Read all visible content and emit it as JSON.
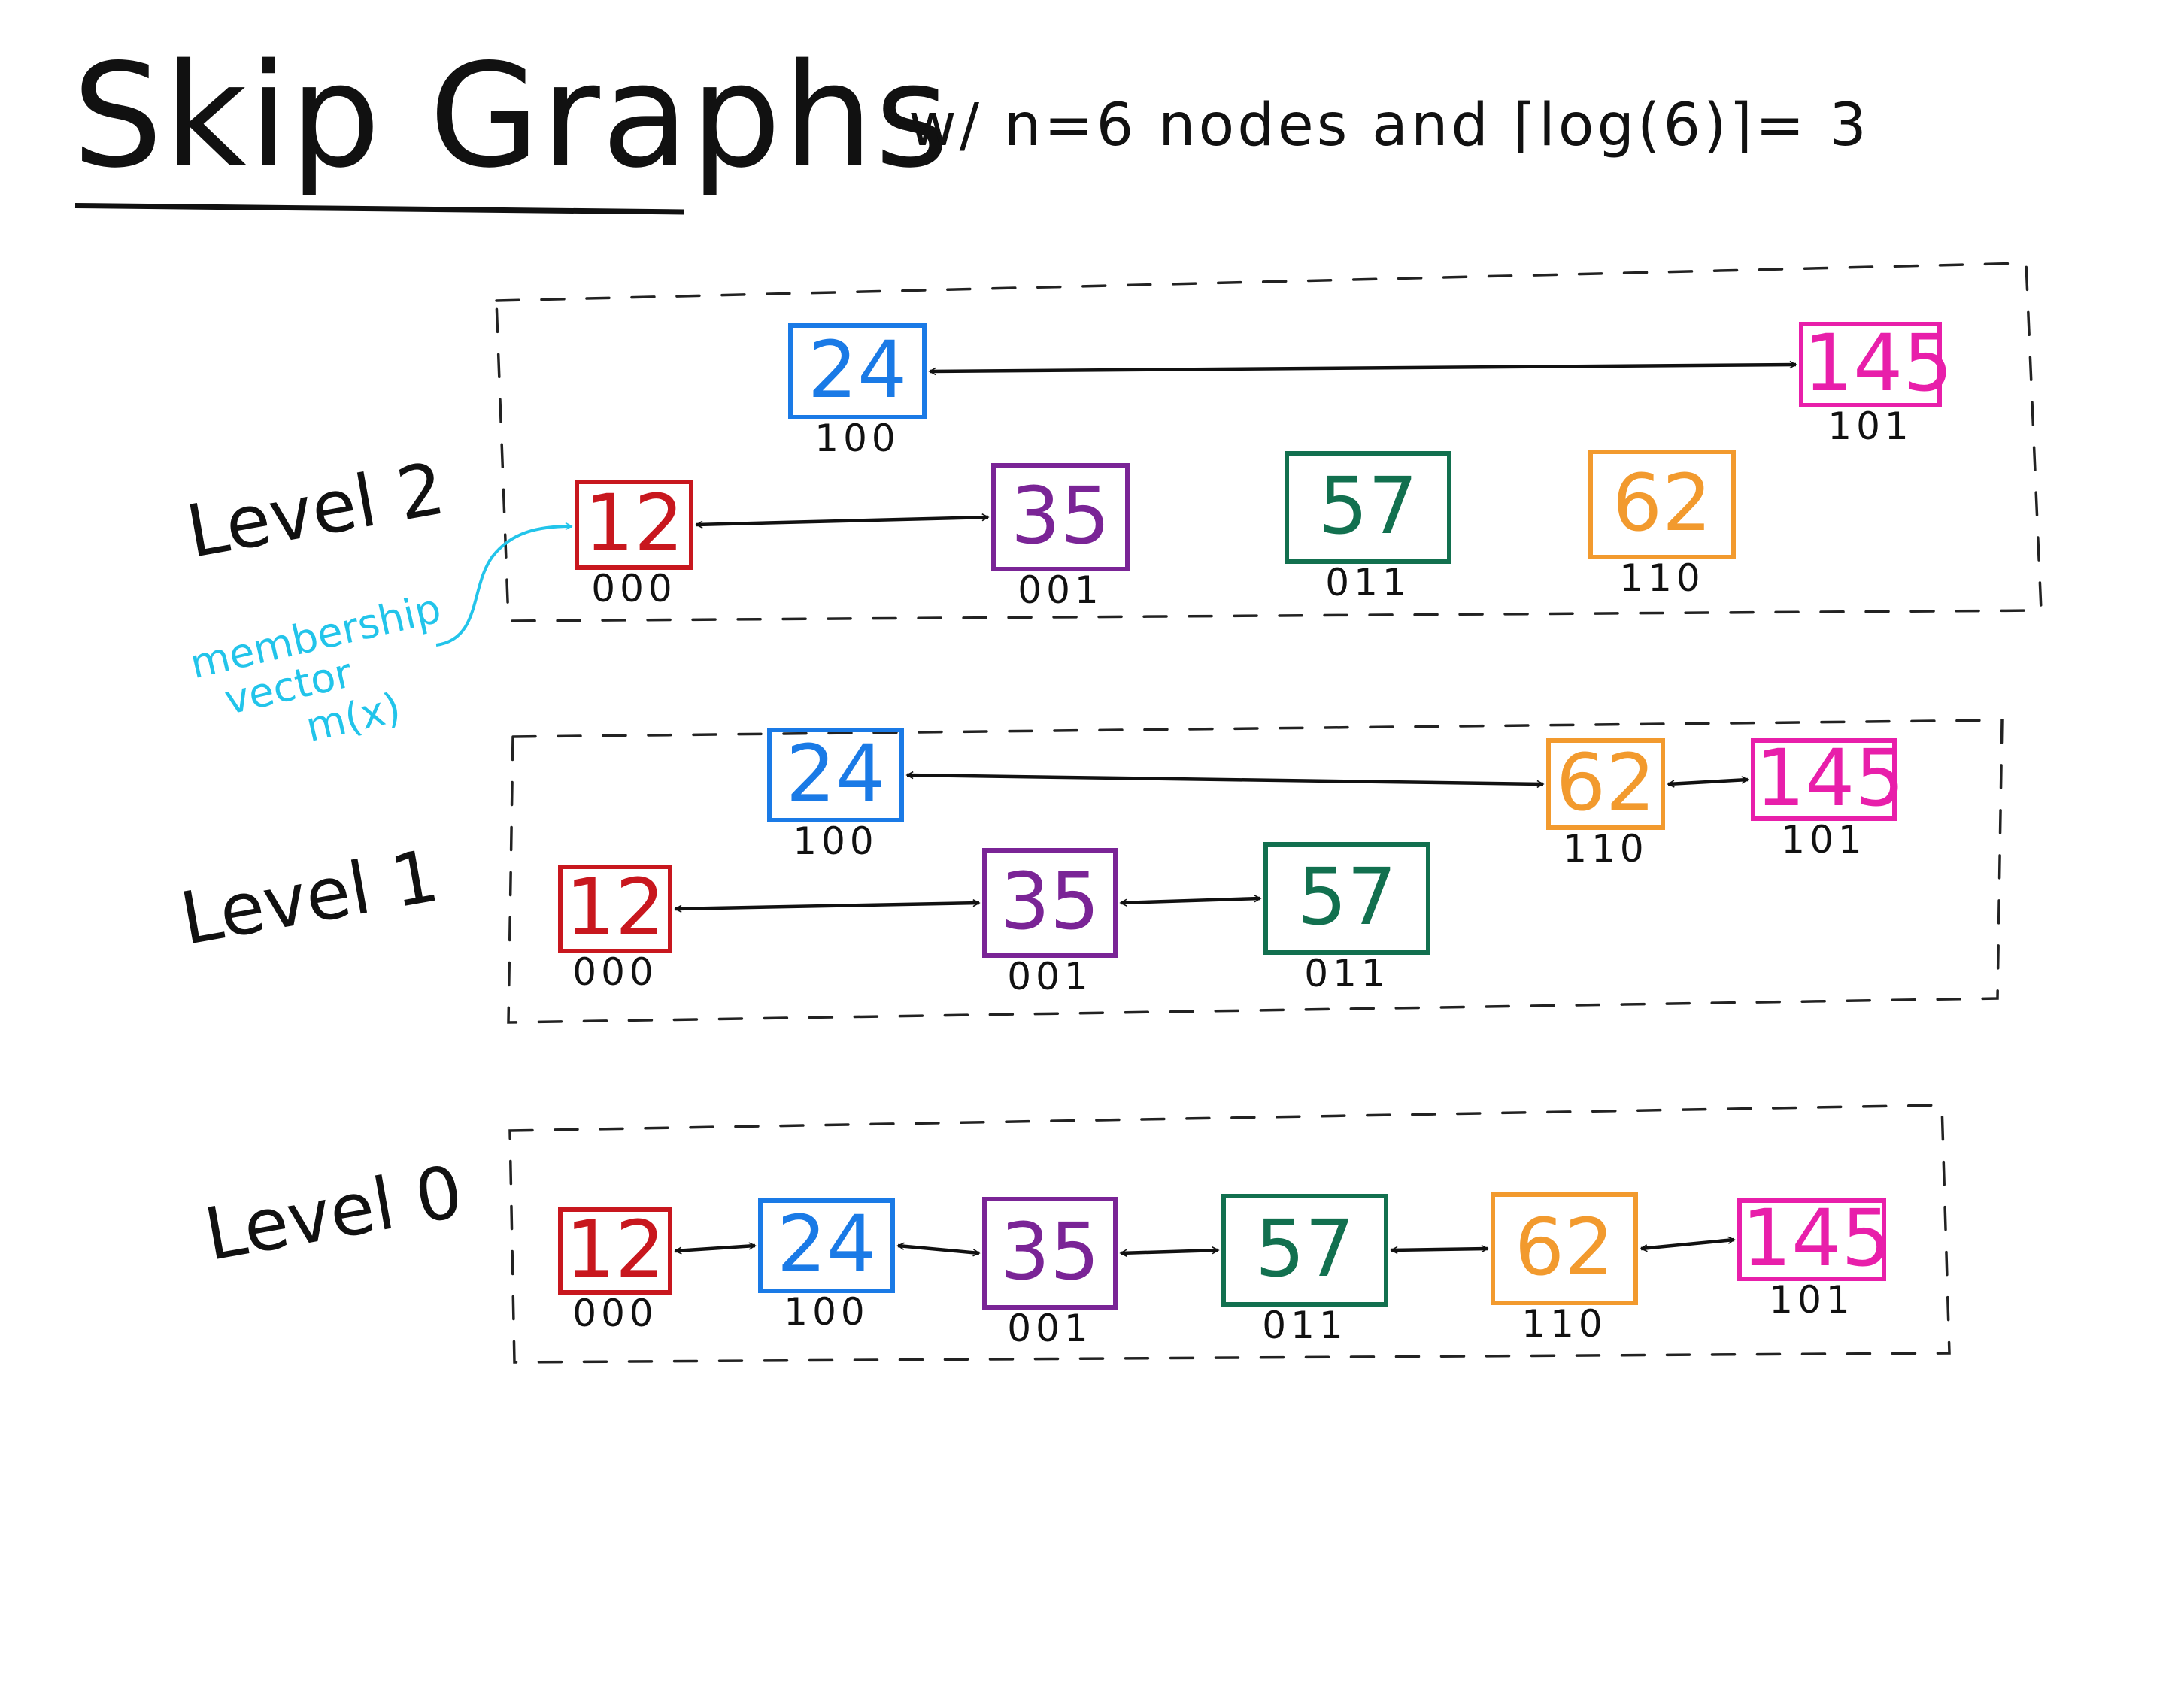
{
  "header": {
    "title": "Skip Graphs",
    "subtitle": "w/ n=6 nodes and ⌈log(6)⌉= 3"
  },
  "annotation": {
    "line1": "membership",
    "line2": "vector",
    "line3": "m(x)",
    "color": "#22c4ea"
  },
  "colors": {
    "red": "#c8171e",
    "blue": "#1a7ae6",
    "purple": "#7a2496",
    "green": "#12704f",
    "orange": "#f29a2e",
    "pink": "#e81faa"
  },
  "levels": [
    {
      "label": "Level 2",
      "nodes": [
        {
          "key": "24",
          "vector": "100",
          "color": "blue"
        },
        {
          "key": "145",
          "vector": "101",
          "color": "pink"
        },
        {
          "key": "12",
          "vector": "000",
          "color": "red"
        },
        {
          "key": "35",
          "vector": "001",
          "color": "purple"
        },
        {
          "key": "57",
          "vector": "011",
          "color": "green"
        },
        {
          "key": "62",
          "vector": "110",
          "color": "orange"
        }
      ],
      "links": [
        [
          "24",
          "145"
        ],
        [
          "12",
          "35"
        ]
      ]
    },
    {
      "label": "Level 1",
      "nodes": [
        {
          "key": "24",
          "vector": "100",
          "color": "blue"
        },
        {
          "key": "62",
          "vector": "110",
          "color": "orange"
        },
        {
          "key": "145",
          "vector": "101",
          "color": "pink"
        },
        {
          "key": "12",
          "vector": "000",
          "color": "red"
        },
        {
          "key": "35",
          "vector": "001",
          "color": "purple"
        },
        {
          "key": "57",
          "vector": "011",
          "color": "green"
        }
      ],
      "links": [
        [
          "24",
          "62"
        ],
        [
          "62",
          "145"
        ],
        [
          "12",
          "35"
        ],
        [
          "35",
          "57"
        ]
      ]
    },
    {
      "label": "Level 0",
      "nodes": [
        {
          "key": "12",
          "vector": "000",
          "color": "red"
        },
        {
          "key": "24",
          "vector": "100",
          "color": "blue"
        },
        {
          "key": "35",
          "vector": "001",
          "color": "purple"
        },
        {
          "key": "57",
          "vector": "011",
          "color": "green"
        },
        {
          "key": "62",
          "vector": "110",
          "color": "orange"
        },
        {
          "key": "145",
          "vector": "101",
          "color": "pink"
        }
      ],
      "links": [
        [
          "12",
          "24"
        ],
        [
          "24",
          "35"
        ],
        [
          "35",
          "57"
        ],
        [
          "57",
          "62"
        ],
        [
          "62",
          "145"
        ]
      ]
    }
  ]
}
